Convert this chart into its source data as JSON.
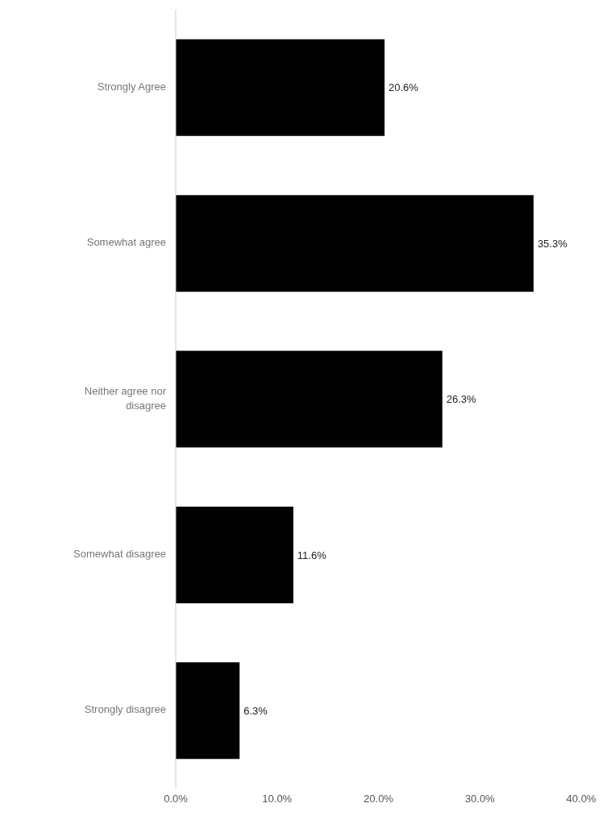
{
  "chart_data": {
    "type": "bar",
    "orientation": "horizontal",
    "categories": [
      "Strongly Agree",
      "Somewhat agree",
      "Neither agree nor disagree",
      "Somewhat disagree",
      "Strongly disagree"
    ],
    "values": [
      20.6,
      35.3,
      26.3,
      11.6,
      6.3
    ],
    "value_labels": [
      "20.6%",
      "35.3%",
      "26.3%",
      "11.6%",
      "6.3%"
    ],
    "color": "#000000",
    "xlim": [
      0,
      40
    ],
    "xticks": [
      {
        "value": 0,
        "label": "0.0%"
      },
      {
        "value": 10,
        "label": "10.0%"
      },
      {
        "value": 20,
        "label": "20.0%"
      },
      {
        "value": 30,
        "label": "30.0%"
      },
      {
        "value": 40,
        "label": "40.0%"
      }
    ],
    "grid": false
  }
}
